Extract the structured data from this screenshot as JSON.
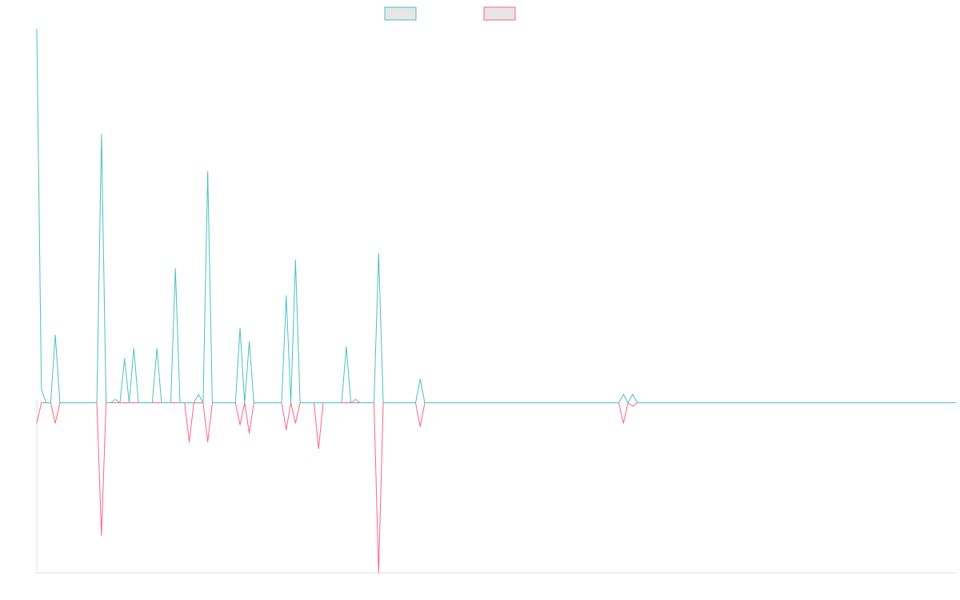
{
  "chart_data": {
    "type": "line",
    "title": "",
    "xlabel": "",
    "ylabel": "",
    "grid": false,
    "legend_position": "top-center",
    "x_count": 200,
    "ylim": [
      -100,
      220
    ],
    "series": [
      {
        "color": "#4bc0c0",
        "points": [
          [
            0,
            220
          ],
          [
            1,
            8
          ],
          [
            2,
            0
          ],
          [
            3,
            0
          ],
          [
            4,
            40
          ],
          [
            5,
            0
          ],
          [
            13,
            0
          ],
          [
            14,
            158
          ],
          [
            15,
            0
          ],
          [
            16,
            0
          ],
          [
            17,
            2
          ],
          [
            18,
            0
          ],
          [
            19,
            26
          ],
          [
            20,
            0
          ],
          [
            21,
            32
          ],
          [
            22,
            0
          ],
          [
            25,
            0
          ],
          [
            26,
            32
          ],
          [
            27,
            0
          ],
          [
            29,
            0
          ],
          [
            30,
            79
          ],
          [
            31,
            0
          ],
          [
            32,
            0
          ],
          [
            33,
            0
          ],
          [
            34,
            0
          ],
          [
            35,
            5
          ],
          [
            36,
            0
          ],
          [
            37,
            136
          ],
          [
            38,
            0
          ],
          [
            39,
            0
          ],
          [
            40,
            0
          ],
          [
            41,
            0
          ],
          [
            42,
            0
          ],
          [
            43,
            0
          ],
          [
            44,
            44
          ],
          [
            45,
            0
          ],
          [
            46,
            36
          ],
          [
            47,
            0
          ],
          [
            48,
            0
          ],
          [
            49,
            0
          ],
          [
            50,
            0
          ],
          [
            51,
            0
          ],
          [
            52,
            0
          ],
          [
            53,
            0
          ],
          [
            54,
            63
          ],
          [
            55,
            0
          ],
          [
            56,
            84
          ],
          [
            57,
            0
          ],
          [
            60,
            0
          ],
          [
            61,
            0
          ],
          [
            62,
            0
          ],
          [
            63,
            0
          ],
          [
            64,
            0
          ],
          [
            66,
            0
          ],
          [
            67,
            33
          ],
          [
            68,
            0
          ],
          [
            69,
            2
          ],
          [
            70,
            0
          ],
          [
            71,
            0
          ],
          [
            73,
            0
          ],
          [
            74,
            88
          ],
          [
            75,
            0
          ],
          [
            82,
            0
          ],
          [
            83,
            14
          ],
          [
            84,
            0
          ],
          [
            126,
            0
          ],
          [
            127,
            5
          ],
          [
            128,
            0
          ],
          [
            129,
            5
          ],
          [
            130,
            0
          ],
          [
            131,
            0
          ],
          [
            132,
            0
          ],
          [
            199,
            0
          ]
        ]
      },
      {
        "color": "#ff6384",
        "points": [
          [
            0,
            -12
          ],
          [
            1,
            0
          ],
          [
            2,
            0
          ],
          [
            3,
            0
          ],
          [
            4,
            -12
          ],
          [
            5,
            0
          ],
          [
            13,
            0
          ],
          [
            14,
            -78
          ],
          [
            15,
            0
          ],
          [
            32,
            0
          ],
          [
            33,
            -23
          ],
          [
            34,
            0
          ],
          [
            36,
            0
          ],
          [
            37,
            -23
          ],
          [
            38,
            0
          ],
          [
            40,
            0
          ],
          [
            41,
            0
          ],
          [
            42,
            0
          ],
          [
            43,
            0
          ],
          [
            44,
            -13
          ],
          [
            45,
            0
          ],
          [
            46,
            -18
          ],
          [
            47,
            0
          ],
          [
            53,
            0
          ],
          [
            54,
            -16
          ],
          [
            55,
            0
          ],
          [
            56,
            -12
          ],
          [
            57,
            0
          ],
          [
            60,
            0
          ],
          [
            61,
            -27
          ],
          [
            62,
            0
          ],
          [
            73,
            0
          ],
          [
            74,
            -100
          ],
          [
            75,
            0
          ],
          [
            82,
            0
          ],
          [
            83,
            -14
          ],
          [
            84,
            0
          ],
          [
            126,
            0
          ],
          [
            127,
            -12
          ],
          [
            128,
            0
          ],
          [
            129,
            -2
          ],
          [
            130,
            0
          ],
          [
            199,
            0
          ]
        ]
      }
    ]
  }
}
